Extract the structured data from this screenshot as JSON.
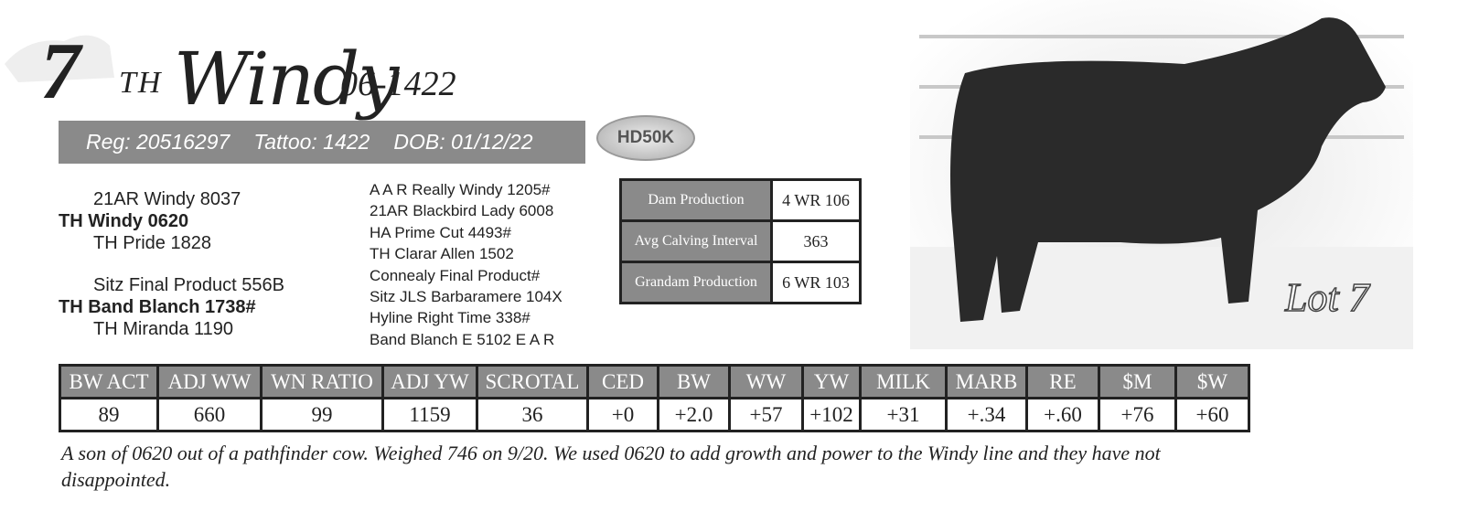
{
  "lot": {
    "number": "7",
    "prefix": "TH",
    "name": "Windy",
    "suffix": "06-1422"
  },
  "registration": {
    "reg": "Reg: 20516297",
    "tattoo": "Tattoo: 1422",
    "dob": "DOB: 01/12/22"
  },
  "badge": "HD50K",
  "pedigree": {
    "sire": {
      "sire": "21AR Windy 8037",
      "name": "TH Windy 0620",
      "dam": "TH Pride 1828"
    },
    "dam": {
      "sire": "Sitz Final Product 556B",
      "name": "TH Band Blanch 1738#",
      "dam": "TH Miranda 1190"
    },
    "grandparents": [
      "A A R Really Windy 1205#",
      "21AR Blackbird Lady 6008",
      "HA Prime Cut 4493#",
      "TH Clarar Allen 1502",
      "Connealy Final Product#",
      "Sitz JLS Barbaramere  104X",
      "Hyline Right Time 338#",
      "Band Blanch E 5102 E A R"
    ]
  },
  "dam_table": {
    "rows": [
      [
        "Dam Production",
        "4 WR 106"
      ],
      [
        "Avg Calving Interval",
        "363"
      ],
      [
        "Grandam Production",
        "6 WR 103"
      ]
    ]
  },
  "photo_label": "Lot 7",
  "epd_table": {
    "headers": [
      "BW ACT",
      "ADJ WW",
      "WN RATIO",
      "ADJ YW",
      "SCROTAL",
      "CED",
      "BW",
      "WW",
      "YW",
      "MILK",
      "MARB",
      "RE",
      "$M",
      "$W"
    ],
    "values": [
      "89",
      "660",
      "99",
      "1159",
      "36",
      "+0",
      "+2.0",
      "+57",
      "+102",
      "+31",
      "+.34",
      "+.60",
      "+76",
      "+60"
    ]
  },
  "comment": "A son of 0620 out of a pathfinder cow. Weighed 746 on 9/20. We used 0620  to add growth and power to the Windy line and they have not disappointed."
}
